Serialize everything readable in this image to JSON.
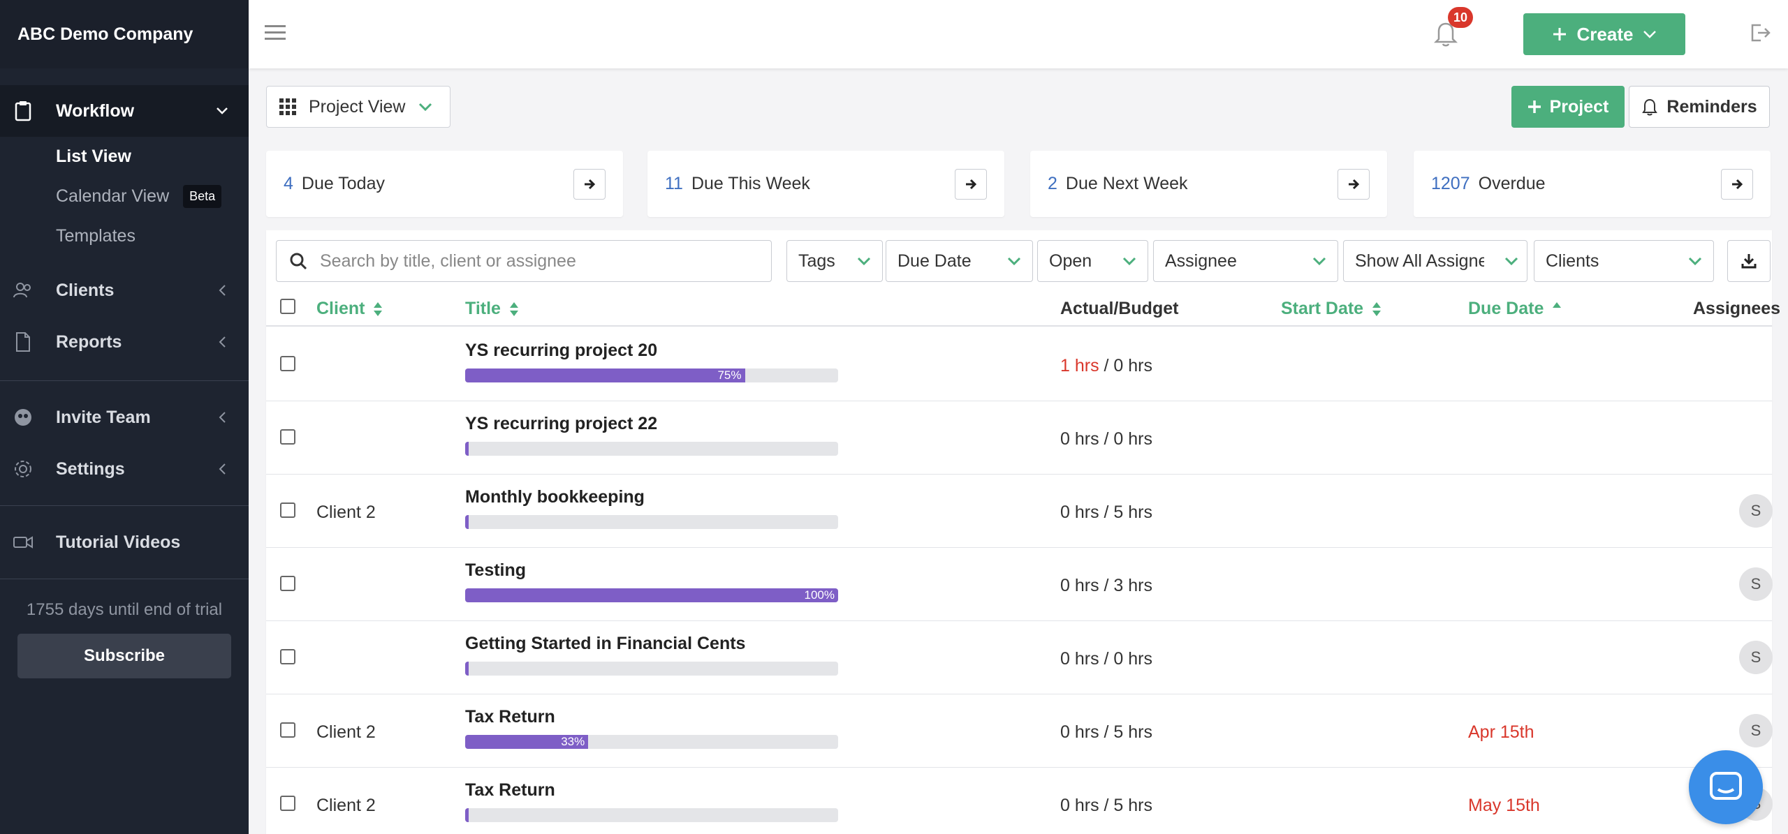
{
  "brand": "ABC Demo Company",
  "sidebar": {
    "workflow": "Workflow",
    "sub_items": [
      {
        "label": "List View"
      },
      {
        "label": "Calendar View",
        "badge": "Beta"
      },
      {
        "label": "Templates"
      }
    ],
    "clients": "Clients",
    "reports": "Reports",
    "invite_team": "Invite Team",
    "settings": "Settings",
    "tutorial_videos": "Tutorial Videos",
    "trial_text": "1755 days until end of trial",
    "subscribe": "Subscribe"
  },
  "topbar": {
    "create_label": "Create",
    "notification_count": "10"
  },
  "toolbar": {
    "view_label": "Project View",
    "project_label": "Project",
    "reminders_label": "Reminders"
  },
  "stats": [
    {
      "num": "4",
      "label": "Due Today"
    },
    {
      "num": "11",
      "label": "Due This Week"
    },
    {
      "num": "2",
      "label": "Due Next Week"
    },
    {
      "num": "1207",
      "label": "Overdue"
    }
  ],
  "filters": {
    "search_placeholder": "Search by title, client or assignee",
    "tags": "Tags",
    "due_date": "Due Date",
    "status": "Open",
    "assignee": "Assignee",
    "show_all": "Show All Assignees",
    "clients": "Clients"
  },
  "table": {
    "headers": {
      "client": "Client",
      "title": "Title",
      "actual_budget": "Actual/Budget",
      "start_date": "Start Date",
      "due_date": "Due Date",
      "assignees": "Assignees"
    },
    "rows": [
      {
        "client": "",
        "title": "YS recurring project 20",
        "progress": 75,
        "progress_label": "75%",
        "actual": "1 hrs",
        "actual_over": true,
        "budget": " / 0 hrs",
        "due": "",
        "assignee": ""
      },
      {
        "client": "",
        "title": "YS recurring project 22",
        "progress": 0,
        "progress_label": "",
        "actual": "0 hrs",
        "actual_over": false,
        "budget": " / 0 hrs",
        "due": "",
        "assignee": ""
      },
      {
        "client": "Client 2",
        "title": "Monthly bookkeeping",
        "progress": 0,
        "progress_label": "",
        "actual": "0 hrs",
        "actual_over": false,
        "budget": " / 5 hrs",
        "due": "",
        "assignee": "S"
      },
      {
        "client": "",
        "title": "Testing",
        "progress": 100,
        "progress_label": "100%",
        "actual": "0 hrs",
        "actual_over": false,
        "budget": " / 3 hrs",
        "due": "",
        "assignee": "S"
      },
      {
        "client": "",
        "title": "Getting Started in Financial Cents",
        "progress": 0,
        "progress_label": "",
        "actual": "0 hrs",
        "actual_over": false,
        "budget": " / 0 hrs",
        "due": "",
        "assignee": "S"
      },
      {
        "client": "Client 2",
        "title": "Tax Return",
        "progress": 33,
        "progress_label": "33%",
        "actual": "0 hrs",
        "actual_over": false,
        "budget": " / 5 hrs",
        "due": "Apr 15th",
        "assignee": "S"
      },
      {
        "client": "Client 2",
        "title": "Tax Return",
        "progress": 0,
        "progress_label": "",
        "actual": "0 hrs",
        "actual_over": false,
        "budget": " / 5 hrs",
        "due": "May 15th",
        "assignee": "S"
      }
    ]
  },
  "colors": {
    "accent_green": "#4caf7d",
    "progress_purple": "#7e5ec6",
    "overdue_red": "#d9372b",
    "link_blue": "#3f6fc0",
    "sidebar_bg": "#1e2430"
  }
}
